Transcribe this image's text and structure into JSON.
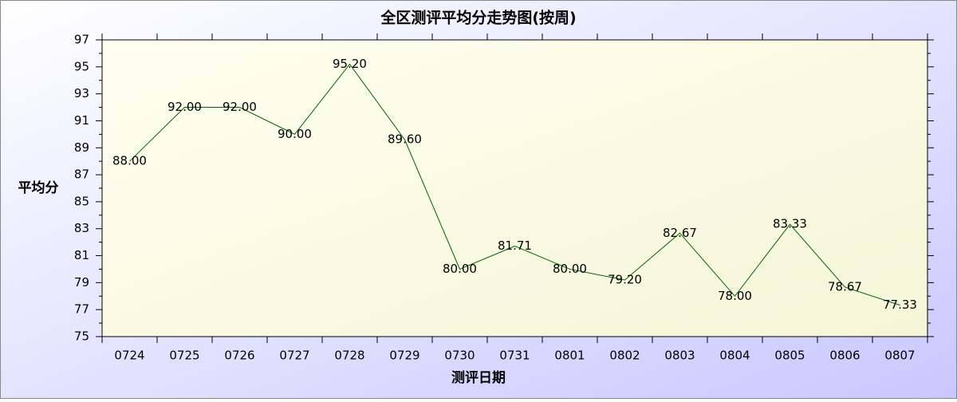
{
  "chart_data": {
    "type": "line",
    "title": "全区测评平均分走势图(按周)",
    "x_label": "测评日期",
    "y_label": "平均分",
    "categories": [
      "0724",
      "0725",
      "0726",
      "0727",
      "0728",
      "0729",
      "0730",
      "0731",
      "0801",
      "0802",
      "0803",
      "0804",
      "0805",
      "0806",
      "0807"
    ],
    "series": [
      {
        "name": "平均分",
        "color": "#006400",
        "values": [
          88,
          92,
          92,
          90,
          95.2,
          89.6,
          80,
          81.71,
          80,
          79.2,
          82.67,
          78,
          83.33,
          78.67,
          77.33
        ],
        "value_labels": [
          "88.00",
          "92.00",
          "92.00",
          "90.00",
          "95.20",
          "89.60",
          "80.00",
          "81.71",
          "80.00",
          "79.20",
          "82.67",
          "78.00",
          "83.33",
          "78.67",
          "77.33"
        ]
      }
    ],
    "ylim": [
      75,
      97
    ],
    "yticks": [
      75,
      77,
      79,
      81,
      83,
      85,
      87,
      89,
      91,
      93,
      95,
      97
    ]
  }
}
